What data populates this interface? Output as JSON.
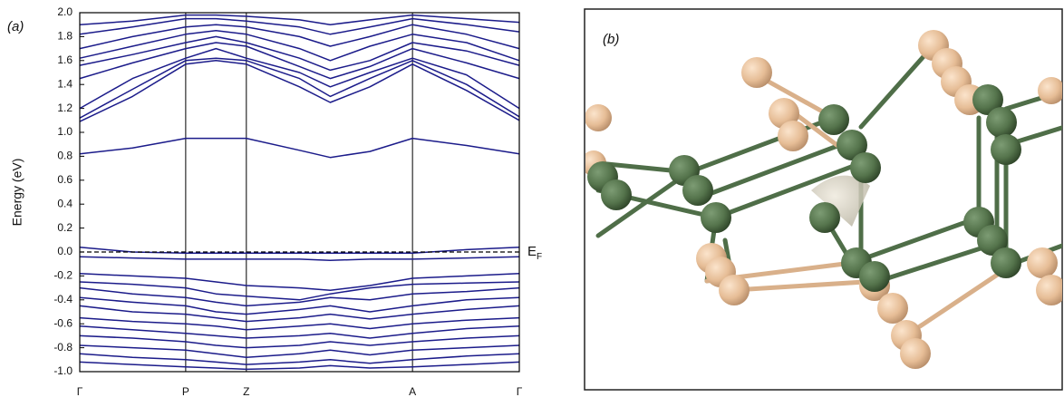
{
  "chart_data": {
    "type": "line",
    "panel_label": "(a)",
    "y_label": "Energy (eV)",
    "x": [
      0,
      0.12,
      0.241,
      0.31,
      0.379,
      0.5,
      0.57,
      0.66,
      0.757,
      0.88,
      1
    ],
    "xlim": [
      0,
      1
    ],
    "xticks": [
      {
        "value": 0,
        "label": "Γ"
      },
      {
        "value": 0.241,
        "label": "P"
      },
      {
        "value": 0.379,
        "label": "Z"
      },
      {
        "value": 0.757,
        "label": "A"
      },
      {
        "value": 1,
        "label": "Γ"
      }
    ],
    "ylim": [
      -1.0,
      2.0
    ],
    "yticks": [
      {
        "value": 2,
        "label": "2.0"
      },
      1.8,
      1.6,
      1.4,
      1.2,
      {
        "value": 1,
        "label": "1.0"
      },
      0.8,
      0.6,
      0.4,
      0.2,
      {
        "value": 0,
        "label": "0.0"
      },
      -0.2,
      -0.4,
      -0.6,
      -0.8,
      {
        "value": -1,
        "label": "-1.0"
      }
    ],
    "fermi_level": 0,
    "fermi_label": {
      "text": "E",
      "subscript": "F"
    },
    "vertical_lines": true,
    "series": [
      {
        "color": "#1b1b8a",
        "values": [
          0.82,
          0.87,
          0.95,
          0.95,
          0.95,
          0.85,
          0.79,
          0.84,
          0.95,
          0.89,
          0.82
        ]
      },
      {
        "color": "#1b1b8a",
        "values": [
          1.09,
          1.3,
          1.57,
          1.6,
          1.57,
          1.38,
          1.25,
          1.38,
          1.57,
          1.35,
          1.1
        ]
      },
      {
        "color": "#1b1b8a",
        "values": [
          1.12,
          1.36,
          1.6,
          1.62,
          1.6,
          1.45,
          1.3,
          1.45,
          1.6,
          1.4,
          1.13
        ]
      },
      {
        "color": "#1b1b8a",
        "values": [
          1.2,
          1.45,
          1.62,
          1.7,
          1.62,
          1.5,
          1.38,
          1.5,
          1.62,
          1.48,
          1.2
        ]
      },
      {
        "color": "#1b1b8a",
        "values": [
          1.45,
          1.58,
          1.7,
          1.75,
          1.72,
          1.55,
          1.45,
          1.55,
          1.7,
          1.58,
          1.45
        ]
      },
      {
        "color": "#1b1b8a",
        "values": [
          1.56,
          1.65,
          1.75,
          1.8,
          1.75,
          1.62,
          1.52,
          1.6,
          1.75,
          1.68,
          1.56
        ]
      },
      {
        "color": "#1b1b8a",
        "values": [
          1.62,
          1.72,
          1.82,
          1.85,
          1.82,
          1.7,
          1.6,
          1.72,
          1.82,
          1.75,
          1.6
        ]
      },
      {
        "color": "#1b1b8a",
        "values": [
          1.7,
          1.8,
          1.88,
          1.9,
          1.88,
          1.8,
          1.72,
          1.8,
          1.9,
          1.82,
          1.7
        ]
      },
      {
        "color": "#1b1b8a",
        "values": [
          1.82,
          1.88,
          1.95,
          1.95,
          1.93,
          1.88,
          1.82,
          1.88,
          1.95,
          1.9,
          1.84
        ]
      },
      {
        "color": "#1b1b8a",
        "values": [
          1.9,
          1.93,
          1.98,
          1.98,
          1.97,
          1.94,
          1.9,
          1.94,
          1.98,
          1.95,
          1.92
        ]
      },
      {
        "color": "#1b1b8a",
        "values": [
          0.04,
          0.0,
          -0.01,
          -0.01,
          -0.01,
          -0.01,
          -0.01,
          -0.01,
          -0.01,
          0.02,
          0.04
        ]
      },
      {
        "color": "#1b1b8a",
        "values": [
          -0.04,
          -0.05,
          -0.06,
          -0.06,
          -0.06,
          -0.06,
          -0.07,
          -0.06,
          -0.06,
          -0.05,
          -0.04
        ]
      },
      {
        "color": "#1b1b8a",
        "values": [
          -0.18,
          -0.2,
          -0.22,
          -0.25,
          -0.28,
          -0.3,
          -0.32,
          -0.28,
          -0.22,
          -0.2,
          -0.18
        ]
      },
      {
        "color": "#1b1b8a",
        "values": [
          -0.25,
          -0.27,
          -0.3,
          -0.35,
          -0.37,
          -0.4,
          -0.35,
          -0.3,
          -0.27,
          -0.26,
          -0.25
        ]
      },
      {
        "color": "#1b1b8a",
        "values": [
          -0.3,
          -0.35,
          -0.38,
          -0.42,
          -0.45,
          -0.42,
          -0.38,
          -0.4,
          -0.35,
          -0.33,
          -0.3
        ]
      },
      {
        "color": "#1b1b8a",
        "values": [
          -0.38,
          -0.42,
          -0.45,
          -0.5,
          -0.52,
          -0.48,
          -0.45,
          -0.5,
          -0.45,
          -0.4,
          -0.38
        ]
      },
      {
        "color": "#1b1b8a",
        "values": [
          -0.45,
          -0.5,
          -0.52,
          -0.55,
          -0.58,
          -0.55,
          -0.52,
          -0.56,
          -0.52,
          -0.48,
          -0.45
        ]
      },
      {
        "color": "#1b1b8a",
        "values": [
          -0.55,
          -0.58,
          -0.6,
          -0.62,
          -0.65,
          -0.62,
          -0.6,
          -0.64,
          -0.6,
          -0.57,
          -0.55
        ]
      },
      {
        "color": "#1b1b8a",
        "values": [
          -0.62,
          -0.65,
          -0.68,
          -0.7,
          -0.72,
          -0.7,
          -0.68,
          -0.72,
          -0.68,
          -0.64,
          -0.62
        ]
      },
      {
        "color": "#1b1b8a",
        "values": [
          -0.7,
          -0.72,
          -0.75,
          -0.78,
          -0.8,
          -0.78,
          -0.75,
          -0.78,
          -0.75,
          -0.72,
          -0.7
        ]
      },
      {
        "color": "#1b1b8a",
        "values": [
          -0.78,
          -0.8,
          -0.82,
          -0.85,
          -0.88,
          -0.85,
          -0.82,
          -0.86,
          -0.82,
          -0.8,
          -0.78
        ]
      },
      {
        "color": "#1b1b8a",
        "values": [
          -0.85,
          -0.88,
          -0.9,
          -0.92,
          -0.94,
          -0.92,
          -0.9,
          -0.93,
          -0.9,
          -0.87,
          -0.85
        ]
      },
      {
        "color": "#1b1b8a",
        "values": [
          -0.92,
          -0.94,
          -0.96,
          -0.97,
          -0.98,
          -0.97,
          -0.95,
          -0.97,
          -0.96,
          -0.94,
          -0.92
        ]
      }
    ]
  },
  "structure_panel": {
    "label": "(b)"
  }
}
